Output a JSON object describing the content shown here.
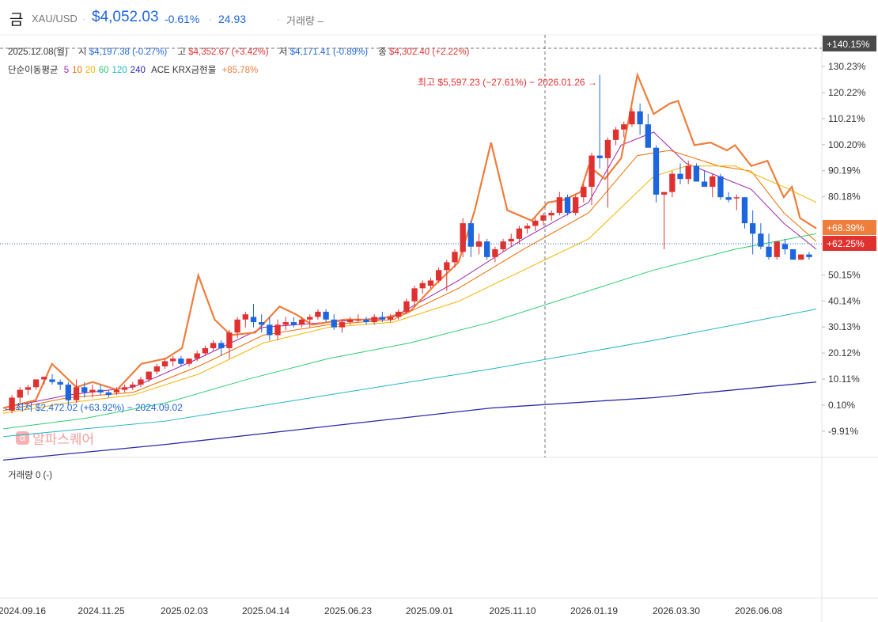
{
  "header": {
    "title": "금",
    "symbol": "XAU/USD",
    "price": "$4,052.03",
    "change": "-0.61%",
    "extra": "24.93",
    "volume_label": "거래량 –"
  },
  "ohlc": {
    "date": "2025.12.08(월)",
    "open_label": "시",
    "open": "$4,197.38 (-0.27%)",
    "high_label": "고",
    "high": "$4,352.67 (+3.42%)",
    "low_label": "저",
    "low": "$4,171.41 (-0.89%)",
    "close_label": "종",
    "close": "$4,302.40 (+2.22%)"
  },
  "ma_legend": {
    "label": "단순이동평균",
    "periods": [
      {
        "value": "5",
        "color": "#9c27b0"
      },
      {
        "value": "10",
        "color": "#ef6c00"
      },
      {
        "value": "20",
        "color": "#f4b400"
      },
      {
        "value": "60",
        "color": "#2ecc71"
      },
      {
        "value": "120",
        "color": "#1fb5c9"
      },
      {
        "value": "240",
        "color": "#2a2aa8"
      }
    ],
    "compare_name": "ACE KRX금현물",
    "compare_value": "+85.78%"
  },
  "volume_legend": "거래량 0 (-)",
  "watermark": "알파스퀘어",
  "annotations": {
    "high": "최고 $5,597.23 (−27.61%) − 2026.01.26 →",
    "low": "← 최저 $2,472.02 (+63.92%) − 2024.09.02"
  },
  "price_tags": {
    "crosshair": "+140.15%",
    "compare": "+68.39%",
    "current": "+62.25%"
  },
  "colors": {
    "up": "#e03131",
    "down": "#1e66dd",
    "compare_line": "#ef7d3c",
    "ma5": "#9c27b0",
    "ma10": "#ef6c00",
    "ma20": "#f4b400",
    "ma60": "#2ecc71",
    "ma120": "#1fb5c9",
    "ma240": "#2a2aa8"
  },
  "chart_data": {
    "type": "candlestick",
    "y_axis_unit": "%",
    "y_ticks": [
      "130.23%",
      "120.22%",
      "110.21%",
      "100.20%",
      "90.19%",
      "80.18%",
      "50.15%",
      "40.14%",
      "30.13%",
      "20.12%",
      "10.11%",
      "0.10%",
      "-9.91%"
    ],
    "x_ticks": [
      "2024.09.16",
      "2024.11.25",
      "2025.02.03",
      "2025.04.14",
      "2025.06.23",
      "2025.09.01",
      "2025.11.10",
      "2026.01.19",
      "2026.03.30",
      "2026.06.08"
    ],
    "ylim": [
      -12,
      142
    ],
    "candles_pct": [
      [
        -2,
        4,
        -3,
        3
      ],
      [
        3,
        7,
        1,
        6
      ],
      [
        6,
        8,
        4,
        7
      ],
      [
        7,
        10,
        6,
        10
      ],
      [
        10,
        11,
        8,
        11
      ],
      [
        10,
        12,
        8,
        9
      ],
      [
        9,
        10,
        6,
        8
      ],
      [
        8,
        9,
        0,
        2
      ],
      [
        2,
        10,
        1,
        7
      ],
      [
        7,
        9,
        3,
        5
      ],
      [
        5,
        8,
        3,
        6
      ],
      [
        6,
        8,
        4,
        5
      ],
      [
        5,
        6,
        3,
        4
      ],
      [
        5,
        7,
        4,
        6
      ],
      [
        6,
        8,
        5,
        7
      ],
      [
        7,
        9,
        6,
        8
      ],
      [
        8,
        11,
        7,
        10
      ],
      [
        10,
        13,
        9,
        13
      ],
      [
        13,
        16,
        12,
        15
      ],
      [
        15,
        18,
        14,
        17
      ],
      [
        17,
        19,
        15,
        18
      ],
      [
        18,
        19,
        15,
        16
      ],
      [
        16,
        18,
        15,
        18
      ],
      [
        18,
        21,
        17,
        20
      ],
      [
        20,
        23,
        19,
        22
      ],
      [
        22,
        25,
        21,
        24
      ],
      [
        24,
        25,
        19,
        22
      ],
      [
        22,
        29,
        18,
        28
      ],
      [
        28,
        34,
        26,
        33
      ],
      [
        33,
        36,
        30,
        35
      ],
      [
        34,
        39,
        30,
        32
      ],
      [
        32,
        35,
        28,
        31
      ],
      [
        31,
        34,
        25,
        27
      ],
      [
        27,
        33,
        25,
        31
      ],
      [
        31,
        34,
        29,
        32
      ],
      [
        32,
        34,
        30,
        31
      ],
      [
        31,
        34,
        30,
        33
      ],
      [
        33,
        35,
        30,
        34
      ],
      [
        34,
        37,
        33,
        36
      ],
      [
        36,
        37,
        32,
        33
      ],
      [
        33,
        35,
        29,
        30
      ],
      [
        30,
        33,
        28,
        32
      ],
      [
        32,
        34,
        31,
        33
      ],
      [
        33,
        35,
        32,
        33
      ],
      [
        33,
        34,
        31,
        32
      ],
      [
        32,
        35,
        31,
        34
      ],
      [
        34,
        36,
        32,
        33
      ],
      [
        33,
        35,
        32,
        34
      ],
      [
        34,
        37,
        33,
        36
      ],
      [
        36,
        41,
        35,
        40
      ],
      [
        40,
        46,
        38,
        45
      ],
      [
        45,
        48,
        43,
        47
      ],
      [
        46,
        49,
        45,
        48
      ],
      [
        48,
        53,
        47,
        52
      ],
      [
        52,
        56,
        44,
        55
      ],
      [
        55,
        60,
        53,
        59
      ],
      [
        59,
        72,
        57,
        70
      ],
      [
        70,
        71,
        57,
        61
      ],
      [
        61,
        66,
        58,
        63
      ],
      [
        63,
        64,
        56,
        57
      ],
      [
        57,
        61,
        55,
        60
      ],
      [
        60,
        64,
        59,
        63
      ],
      [
        63,
        66,
        61,
        64
      ],
      [
        64,
        69,
        62,
        68
      ],
      [
        68,
        70,
        66,
        69
      ],
      [
        69,
        72,
        67,
        71
      ],
      [
        71,
        74,
        69,
        73
      ],
      [
        73,
        75,
        71,
        74
      ],
      [
        74,
        82,
        73,
        80
      ],
      [
        80,
        81,
        73,
        74
      ],
      [
        74,
        81,
        73,
        80
      ],
      [
        80,
        85,
        78,
        84
      ],
      [
        84,
        97,
        77,
        96
      ],
      [
        96,
        127,
        91,
        95
      ],
      [
        95,
        103,
        76,
        102
      ],
      [
        102,
        107,
        100,
        106
      ],
      [
        106,
        109,
        103,
        108
      ],
      [
        108,
        114,
        107,
        113
      ],
      [
        113,
        116,
        104,
        108
      ],
      [
        108,
        112,
        100,
        99
      ],
      [
        99,
        100,
        78,
        81
      ],
      [
        81,
        82,
        60,
        82
      ],
      [
        82,
        90,
        80,
        89
      ],
      [
        89,
        93,
        85,
        87
      ],
      [
        87,
        94,
        85,
        92
      ],
      [
        92,
        93,
        86,
        86
      ],
      [
        86,
        90,
        84,
        84
      ],
      [
        84,
        89,
        80,
        88
      ],
      [
        88,
        89,
        79,
        80
      ],
      [
        80,
        82,
        78,
        79
      ],
      [
        80,
        81,
        75,
        80
      ],
      [
        80,
        80,
        68,
        70
      ],
      [
        70,
        75,
        58,
        66
      ],
      [
        66,
        70,
        60,
        61
      ],
      [
        61,
        66,
        56,
        57
      ],
      [
        57,
        63,
        56,
        63
      ],
      [
        62,
        64,
        58,
        60
      ],
      [
        60,
        60,
        56,
        56
      ],
      [
        56,
        58,
        57,
        58
      ],
      [
        58,
        59,
        56,
        57
      ]
    ],
    "ma_series_pct": {
      "ma5": [
        [
          0,
          -1
        ],
        [
          8,
          4
        ],
        [
          16,
          7
        ],
        [
          24,
          18
        ],
        [
          32,
          30
        ],
        [
          40,
          32
        ],
        [
          48,
          34
        ],
        [
          56,
          48
        ],
        [
          64,
          64
        ],
        [
          72,
          78
        ],
        [
          76,
          100
        ],
        [
          80,
          105
        ],
        [
          84,
          93
        ],
        [
          88,
          88
        ],
        [
          92,
          83
        ],
        [
          96,
          70
        ],
        [
          100,
          60
        ]
      ],
      "ma10": [
        [
          0,
          -2
        ],
        [
          8,
          3
        ],
        [
          16,
          5
        ],
        [
          24,
          15
        ],
        [
          32,
          27
        ],
        [
          40,
          31
        ],
        [
          48,
          33
        ],
        [
          56,
          45
        ],
        [
          64,
          60
        ],
        [
          72,
          74
        ],
        [
          78,
          96
        ],
        [
          82,
          98
        ],
        [
          88,
          92
        ],
        [
          92,
          90
        ],
        [
          96,
          74
        ],
        [
          100,
          63
        ]
      ],
      "ma20": [
        [
          0,
          -3
        ],
        [
          8,
          1
        ],
        [
          16,
          4
        ],
        [
          24,
          12
        ],
        [
          32,
          24
        ],
        [
          40,
          30
        ],
        [
          48,
          32
        ],
        [
          56,
          40
        ],
        [
          64,
          52
        ],
        [
          72,
          64
        ],
        [
          80,
          88
        ],
        [
          84,
          92
        ],
        [
          90,
          92
        ],
        [
          96,
          84
        ],
        [
          100,
          78
        ]
      ],
      "ma60": [
        [
          0,
          -9
        ],
        [
          10,
          -5
        ],
        [
          20,
          1
        ],
        [
          30,
          10
        ],
        [
          40,
          18
        ],
        [
          50,
          24
        ],
        [
          60,
          32
        ],
        [
          70,
          42
        ],
        [
          80,
          52
        ],
        [
          90,
          60
        ],
        [
          100,
          66
        ]
      ],
      "ma120": [
        [
          0,
          -12
        ],
        [
          20,
          -6
        ],
        [
          40,
          4
        ],
        [
          60,
          14
        ],
        [
          80,
          25
        ],
        [
          100,
          37
        ]
      ],
      "ma240": [
        [
          0,
          -21
        ],
        [
          20,
          -15
        ],
        [
          40,
          -8
        ],
        [
          60,
          -1
        ],
        [
          80,
          3
        ],
        [
          100,
          9
        ]
      ]
    },
    "compare_series_pct": [
      [
        0,
        -1
      ],
      [
        4,
        2
      ],
      [
        6,
        16
      ],
      [
        9,
        7
      ],
      [
        11,
        9
      ],
      [
        14,
        6
      ],
      [
        17,
        16
      ],
      [
        20,
        18
      ],
      [
        22,
        22
      ],
      [
        24,
        50
      ],
      [
        26,
        33
      ],
      [
        28,
        27
      ],
      [
        31,
        28
      ],
      [
        34,
        38
      ],
      [
        36,
        35
      ],
      [
        38,
        31
      ],
      [
        42,
        33
      ],
      [
        46,
        33
      ],
      [
        50,
        36
      ],
      [
        53,
        46
      ],
      [
        56,
        55
      ],
      [
        58,
        75
      ],
      [
        60,
        101
      ],
      [
        62,
        75
      ],
      [
        65,
        71
      ],
      [
        67,
        78
      ],
      [
        69,
        79
      ],
      [
        71,
        82
      ],
      [
        72,
        92
      ],
      [
        74,
        87
      ],
      [
        76,
        95
      ],
      [
        78,
        127
      ],
      [
        80,
        112
      ],
      [
        82,
        116
      ],
      [
        83,
        117
      ],
      [
        85,
        100
      ],
      [
        87,
        101
      ],
      [
        89,
        98
      ],
      [
        90,
        100
      ],
      [
        92,
        92
      ],
      [
        94,
        94
      ],
      [
        96,
        80
      ],
      [
        97,
        84
      ],
      [
        98,
        72
      ],
      [
        100,
        68
      ]
    ]
  }
}
